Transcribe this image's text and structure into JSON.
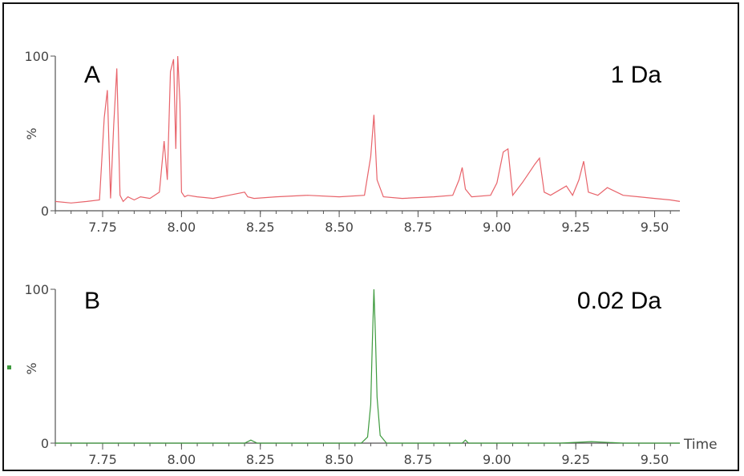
{
  "chart_data": [
    {
      "type": "line",
      "panel_label": "A",
      "annotation": "1 Da",
      "ylabel": "%",
      "xlabel": "",
      "xlim": [
        7.6,
        9.58
      ],
      "ylim": [
        0,
        100
      ],
      "x_ticks": [
        "7.75",
        "8.00",
        "8.25",
        "8.50",
        "8.75",
        "9.00",
        "9.25",
        "9.50"
      ],
      "y_ticks": [
        "0",
        "100"
      ],
      "color": "#e8636a",
      "series": [
        {
          "x": [
            7.6,
            7.65,
            7.7,
            7.74,
            7.755,
            7.765,
            7.775,
            7.785,
            7.795,
            7.805,
            7.815,
            7.83,
            7.85,
            7.87,
            7.9,
            7.93,
            7.945,
            7.955,
            7.965,
            7.975,
            7.982,
            7.988,
            7.995,
            8.0,
            8.01,
            8.02,
            8.05,
            8.1,
            8.15,
            8.2,
            8.21,
            8.23,
            8.3,
            8.4,
            8.5,
            8.58,
            8.6,
            8.61,
            8.62,
            8.64,
            8.7,
            8.8,
            8.86,
            8.88,
            8.89,
            8.9,
            8.92,
            8.98,
            9.0,
            9.02,
            9.035,
            9.05,
            9.08,
            9.1,
            9.12,
            9.135,
            9.15,
            9.17,
            9.22,
            9.24,
            9.26,
            9.275,
            9.29,
            9.32,
            9.35,
            9.4,
            9.45,
            9.5,
            9.55,
            9.58
          ],
          "y": [
            6,
            5,
            6,
            7,
            60,
            78,
            8,
            55,
            92,
            10,
            6,
            9,
            7,
            9,
            8,
            12,
            45,
            20,
            90,
            98,
            40,
            100,
            70,
            12,
            9,
            10,
            9,
            8,
            10,
            12,
            9,
            8,
            9,
            10,
            9,
            10,
            35,
            62,
            20,
            9,
            8,
            9,
            10,
            20,
            28,
            14,
            9,
            10,
            18,
            38,
            40,
            10,
            18,
            24,
            30,
            34,
            12,
            10,
            16,
            10,
            20,
            32,
            12,
            10,
            15,
            10,
            9,
            8,
            7,
            6
          ]
        }
      ]
    },
    {
      "type": "line",
      "panel_label": "B",
      "annotation": "0.02 Da",
      "ylabel": "%",
      "xlabel": "Time",
      "xlim": [
        7.6,
        9.58
      ],
      "ylim": [
        0,
        100
      ],
      "x_ticks": [
        "7.75",
        "8.00",
        "8.25",
        "8.50",
        "8.75",
        "9.00",
        "9.25",
        "9.50"
      ],
      "y_ticks": [
        "0",
        "100"
      ],
      "color": "#3d9a3d",
      "series": [
        {
          "x": [
            7.6,
            7.8,
            8.0,
            8.2,
            8.22,
            8.24,
            8.4,
            8.57,
            8.59,
            8.6,
            8.605,
            8.61,
            8.615,
            8.62,
            8.63,
            8.65,
            8.8,
            8.89,
            8.9,
            8.91,
            9.0,
            9.2,
            9.3,
            9.4,
            9.58
          ],
          "y": [
            0,
            0,
            0,
            0,
            2,
            0,
            0,
            0,
            4,
            25,
            65,
            100,
            70,
            30,
            5,
            0,
            0,
            0,
            2,
            0,
            0,
            0,
            1,
            0,
            0
          ]
        }
      ]
    }
  ]
}
